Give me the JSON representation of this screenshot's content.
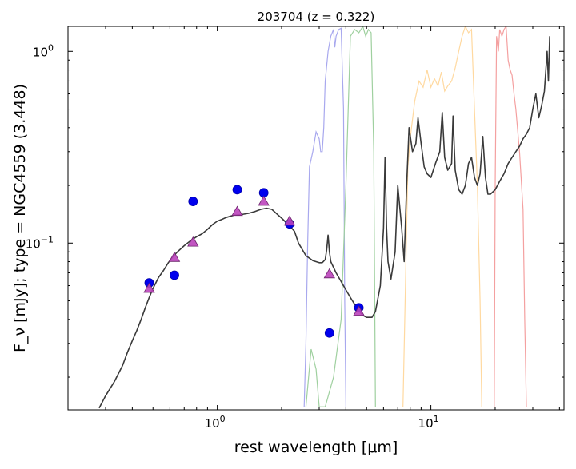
{
  "chart_data": {
    "type": "line",
    "title": "203704 (z = 0.322)",
    "xlabel": "rest wavelength [μm]",
    "ylabel": "F_ν [mJy];  type = NGC4559 (3.448)",
    "xscale": "log",
    "yscale": "log",
    "xlim": [
      0.2,
      42
    ],
    "ylim": [
      0.0135,
      1.35
    ],
    "x_ticks": [
      {
        "value": 1,
        "label": "10^0"
      },
      {
        "value": 10,
        "label": "10^1"
      }
    ],
    "y_ticks": [
      {
        "value": 0.1,
        "label": "10^-1"
      },
      {
        "value": 1,
        "label": "10^0"
      }
    ],
    "grid": false,
    "colors": {
      "template": "#3a3a3a",
      "observed": "#0000ee",
      "model_points": "#bb44bb",
      "filter_blue": "#a8a8ee",
      "filter_green": "#9fd09f",
      "filter_orange": "#ffd9a0",
      "filter_red": "#f4a0a0"
    },
    "series": [
      {
        "kind": "template",
        "x": [
          0.28,
          0.3,
          0.33,
          0.36,
          0.38,
          0.4,
          0.42,
          0.44,
          0.46,
          0.48,
          0.5,
          0.53,
          0.56,
          0.59,
          0.62,
          0.65,
          0.7,
          0.75,
          0.8,
          0.85,
          0.9,
          0.95,
          1.0,
          1.05,
          1.1,
          1.2,
          1.3,
          1.4,
          1.5,
          1.6,
          1.7,
          1.8,
          1.9,
          2.0,
          2.1,
          2.2,
          2.3,
          2.4,
          2.6,
          2.8,
          3.0,
          3.1,
          3.2,
          3.25,
          3.3,
          3.35,
          3.4,
          3.6,
          3.8,
          4.0,
          4.2,
          4.5,
          4.8,
          5.0,
          5.3,
          5.5,
          5.8,
          6.0,
          6.1,
          6.2,
          6.3,
          6.5,
          6.8,
          7.0,
          7.3,
          7.5,
          7.7,
          7.9,
          8.2,
          8.5,
          8.7,
          9.0,
          9.3,
          9.6,
          10.0,
          10.5,
          11.0,
          11.3,
          11.6,
          12.0,
          12.5,
          12.7,
          13.0,
          13.5,
          14.0,
          14.5,
          15.0,
          15.5,
          16.0,
          16.5,
          17.0,
          17.5,
          18.0,
          18.5,
          19.0,
          20.0,
          21.0,
          22.0,
          23.0,
          24.0,
          25.0,
          26.0,
          27.0,
          28.0,
          29.0,
          30.0,
          31.0,
          32.0,
          33.0,
          34.0,
          35.0,
          35.5,
          36.0
        ],
        "y": [
          0.0138,
          0.016,
          0.019,
          0.023,
          0.027,
          0.031,
          0.035,
          0.04,
          0.046,
          0.052,
          0.058,
          0.066,
          0.072,
          0.079,
          0.085,
          0.09,
          0.097,
          0.103,
          0.108,
          0.112,
          0.118,
          0.125,
          0.13,
          0.133,
          0.136,
          0.14,
          0.141,
          0.143,
          0.146,
          0.15,
          0.152,
          0.15,
          0.142,
          0.135,
          0.128,
          0.122,
          0.115,
          0.1,
          0.086,
          0.081,
          0.079,
          0.079,
          0.082,
          0.092,
          0.11,
          0.09,
          0.08,
          0.07,
          0.063,
          0.057,
          0.052,
          0.046,
          0.042,
          0.041,
          0.041,
          0.044,
          0.06,
          0.12,
          0.28,
          0.12,
          0.08,
          0.065,
          0.09,
          0.2,
          0.12,
          0.08,
          0.2,
          0.4,
          0.3,
          0.33,
          0.45,
          0.33,
          0.25,
          0.23,
          0.22,
          0.26,
          0.3,
          0.48,
          0.28,
          0.24,
          0.26,
          0.46,
          0.24,
          0.19,
          0.18,
          0.2,
          0.26,
          0.28,
          0.22,
          0.2,
          0.23,
          0.36,
          0.22,
          0.18,
          0.18,
          0.19,
          0.21,
          0.23,
          0.26,
          0.28,
          0.3,
          0.32,
          0.35,
          0.37,
          0.4,
          0.5,
          0.6,
          0.45,
          0.52,
          0.62,
          1.0,
          0.7,
          1.2
        ]
      },
      {
        "kind": "filter",
        "color_key": "filter_blue",
        "x": [
          2.55,
          2.6,
          2.65,
          2.7,
          2.8,
          2.9,
          3.0,
          3.05,
          3.1,
          3.15,
          3.2,
          3.3,
          3.4,
          3.5,
          3.55,
          3.6,
          3.7,
          3.8,
          3.9,
          3.95,
          4.0
        ],
        "y": [
          0.014,
          0.03,
          0.1,
          0.25,
          0.3,
          0.38,
          0.35,
          0.3,
          0.3,
          0.4,
          0.7,
          1.0,
          1.2,
          1.3,
          1.05,
          1.2,
          1.3,
          1.32,
          0.5,
          0.05,
          0.014
        ]
      },
      {
        "kind": "filter",
        "color_key": "filter_green",
        "x": [
          2.6,
          2.75,
          2.9,
          3.0,
          3.2,
          3.5,
          3.8,
          4.0,
          4.2,
          4.4,
          4.6,
          4.8,
          4.95,
          5.1,
          5.25,
          5.4,
          5.5
        ],
        "y": [
          0.014,
          0.028,
          0.022,
          0.014,
          0.014,
          0.02,
          0.04,
          0.2,
          1.2,
          1.3,
          1.25,
          1.35,
          1.2,
          1.3,
          1.25,
          0.3,
          0.014
        ]
      },
      {
        "kind": "filter",
        "color_key": "filter_orange",
        "x": [
          7.4,
          7.6,
          7.8,
          8.0,
          8.4,
          8.8,
          9.2,
          9.6,
          10.0,
          10.4,
          10.8,
          11.2,
          11.6,
          12.0,
          12.5,
          13.0,
          13.5,
          14.0,
          14.5,
          15.0,
          15.5,
          16.0,
          16.5,
          17.0,
          17.3
        ],
        "y": [
          0.014,
          0.06,
          0.25,
          0.35,
          0.55,
          0.7,
          0.65,
          0.8,
          0.65,
          0.72,
          0.66,
          0.78,
          0.62,
          0.66,
          0.7,
          0.82,
          1.0,
          1.2,
          1.35,
          1.25,
          1.3,
          0.5,
          0.2,
          0.05,
          0.014
        ]
      },
      {
        "kind": "filter",
        "color_key": "filter_red",
        "x": [
          19.8,
          20.0,
          20.3,
          20.7,
          21.0,
          21.5,
          22.0,
          22.5,
          23.0,
          23.5,
          24.0,
          24.5,
          25.0,
          26.0,
          27.0,
          27.5,
          28.0
        ],
        "y": [
          0.014,
          0.2,
          1.2,
          1.0,
          1.3,
          1.2,
          1.3,
          1.35,
          0.9,
          0.8,
          0.75,
          0.6,
          0.5,
          0.3,
          0.15,
          0.04,
          0.014
        ]
      },
      {
        "kind": "observed",
        "x": [
          0.48,
          0.63,
          0.77,
          1.24,
          1.65,
          2.18,
          3.35,
          4.6
        ],
        "y": [
          0.062,
          0.068,
          0.165,
          0.19,
          0.183,
          0.126,
          0.034,
          0.046
        ]
      },
      {
        "kind": "model_points",
        "x": [
          0.48,
          0.63,
          0.77,
          1.24,
          1.65,
          2.18,
          3.35,
          4.6
        ],
        "y": [
          0.058,
          0.084,
          0.101,
          0.146,
          0.165,
          0.13,
          0.069,
          0.044
        ]
      }
    ]
  }
}
